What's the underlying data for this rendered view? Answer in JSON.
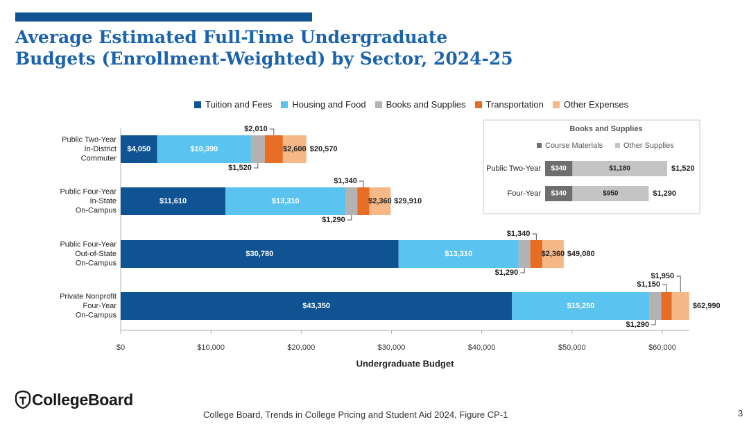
{
  "title_line1": "Average Estimated Full-Time Undergraduate",
  "title_line2": "Budgets (Enrollment-Weighted) by Sector, 2024-25",
  "source": "College Board, Trends in College Pricing and Student Aid 2024, Figure CP-1",
  "page_number": "3",
  "logo": {
    "text": "CollegeBoard",
    "icon": "acorn-shield-icon"
  },
  "colors": {
    "tuition": "#0f5392",
    "housing": "#5bc3f0",
    "books": "#b3b3b3",
    "transport": "#e66d23",
    "other": "#f5b886",
    "title": "#1b63ad",
    "course_materials": "#6e6e6e",
    "other_supplies": "#c4c4c4"
  },
  "chart_data": [
    {
      "type": "bar",
      "orientation": "horizontal",
      "stacked": true,
      "xlabel": "Undergraduate Budget",
      "xlim": [
        0,
        63000
      ],
      "xticks": [
        0,
        10000,
        20000,
        30000,
        40000,
        50000,
        60000
      ],
      "xtick_labels": [
        "$0",
        "$10,000",
        "$20,000",
        "$30,000",
        "$40,000",
        "$50,000",
        "$60,000"
      ],
      "legend_position": "top",
      "categories": [
        [
          "Public Two-Year",
          "In-District",
          "Commuter"
        ],
        [
          "Public Four-Year",
          "In-State",
          "On-Campus"
        ],
        [
          "Public Four-Year",
          "Out-of-State",
          "On-Campus"
        ],
        [
          "Private Nonprofit",
          "Four-Year",
          "On-Campus"
        ]
      ],
      "series": [
        {
          "name": "Tuition and Fees",
          "color_key": "tuition",
          "values": [
            4050,
            11610,
            30780,
            43350
          ],
          "labels": [
            "$4,050",
            "$11,610",
            "$30,780",
            "$43,350"
          ]
        },
        {
          "name": "Housing and Food",
          "color_key": "housing",
          "values": [
            10390,
            13310,
            13310,
            15250
          ],
          "labels": [
            "$10,390",
            "$13,310",
            "$13,310",
            "$15,250"
          ]
        },
        {
          "name": "Books and Supplies",
          "color_key": "books",
          "values": [
            1520,
            1290,
            1290,
            1290
          ],
          "labels": [
            "$1,520",
            "$1,290",
            "$1,290",
            "$1,290"
          ]
        },
        {
          "name": "Transportation",
          "color_key": "transport",
          "values": [
            2010,
            1340,
            1340,
            1150
          ],
          "labels": [
            "$2,010",
            "$1,340",
            "$1,340",
            "$1,150"
          ]
        },
        {
          "name": "Other Expenses",
          "color_key": "other",
          "values": [
            2600,
            2360,
            2360,
            1950
          ],
          "labels": [
            "$2,600",
            "$2,360",
            "$2,360",
            "$1,950"
          ]
        }
      ],
      "totals": [
        "$20,570",
        "$29,910",
        "$49,080",
        "$62,990"
      ]
    },
    {
      "type": "bar",
      "orientation": "horizontal",
      "stacked": true,
      "title": "Books and Supplies",
      "categories": [
        "Public Two-Year",
        "Four-Year"
      ],
      "series": [
        {
          "name": "Course Materials",
          "color_key": "course_materials",
          "values": [
            340,
            340
          ],
          "labels": [
            "$340",
            "$340"
          ]
        },
        {
          "name": "Other Supplies",
          "color_key": "other_supplies",
          "values": [
            1180,
            950
          ],
          "labels": [
            "$1,180",
            "$950"
          ]
        }
      ],
      "totals": [
        "$1,520",
        "$1,290"
      ]
    }
  ]
}
